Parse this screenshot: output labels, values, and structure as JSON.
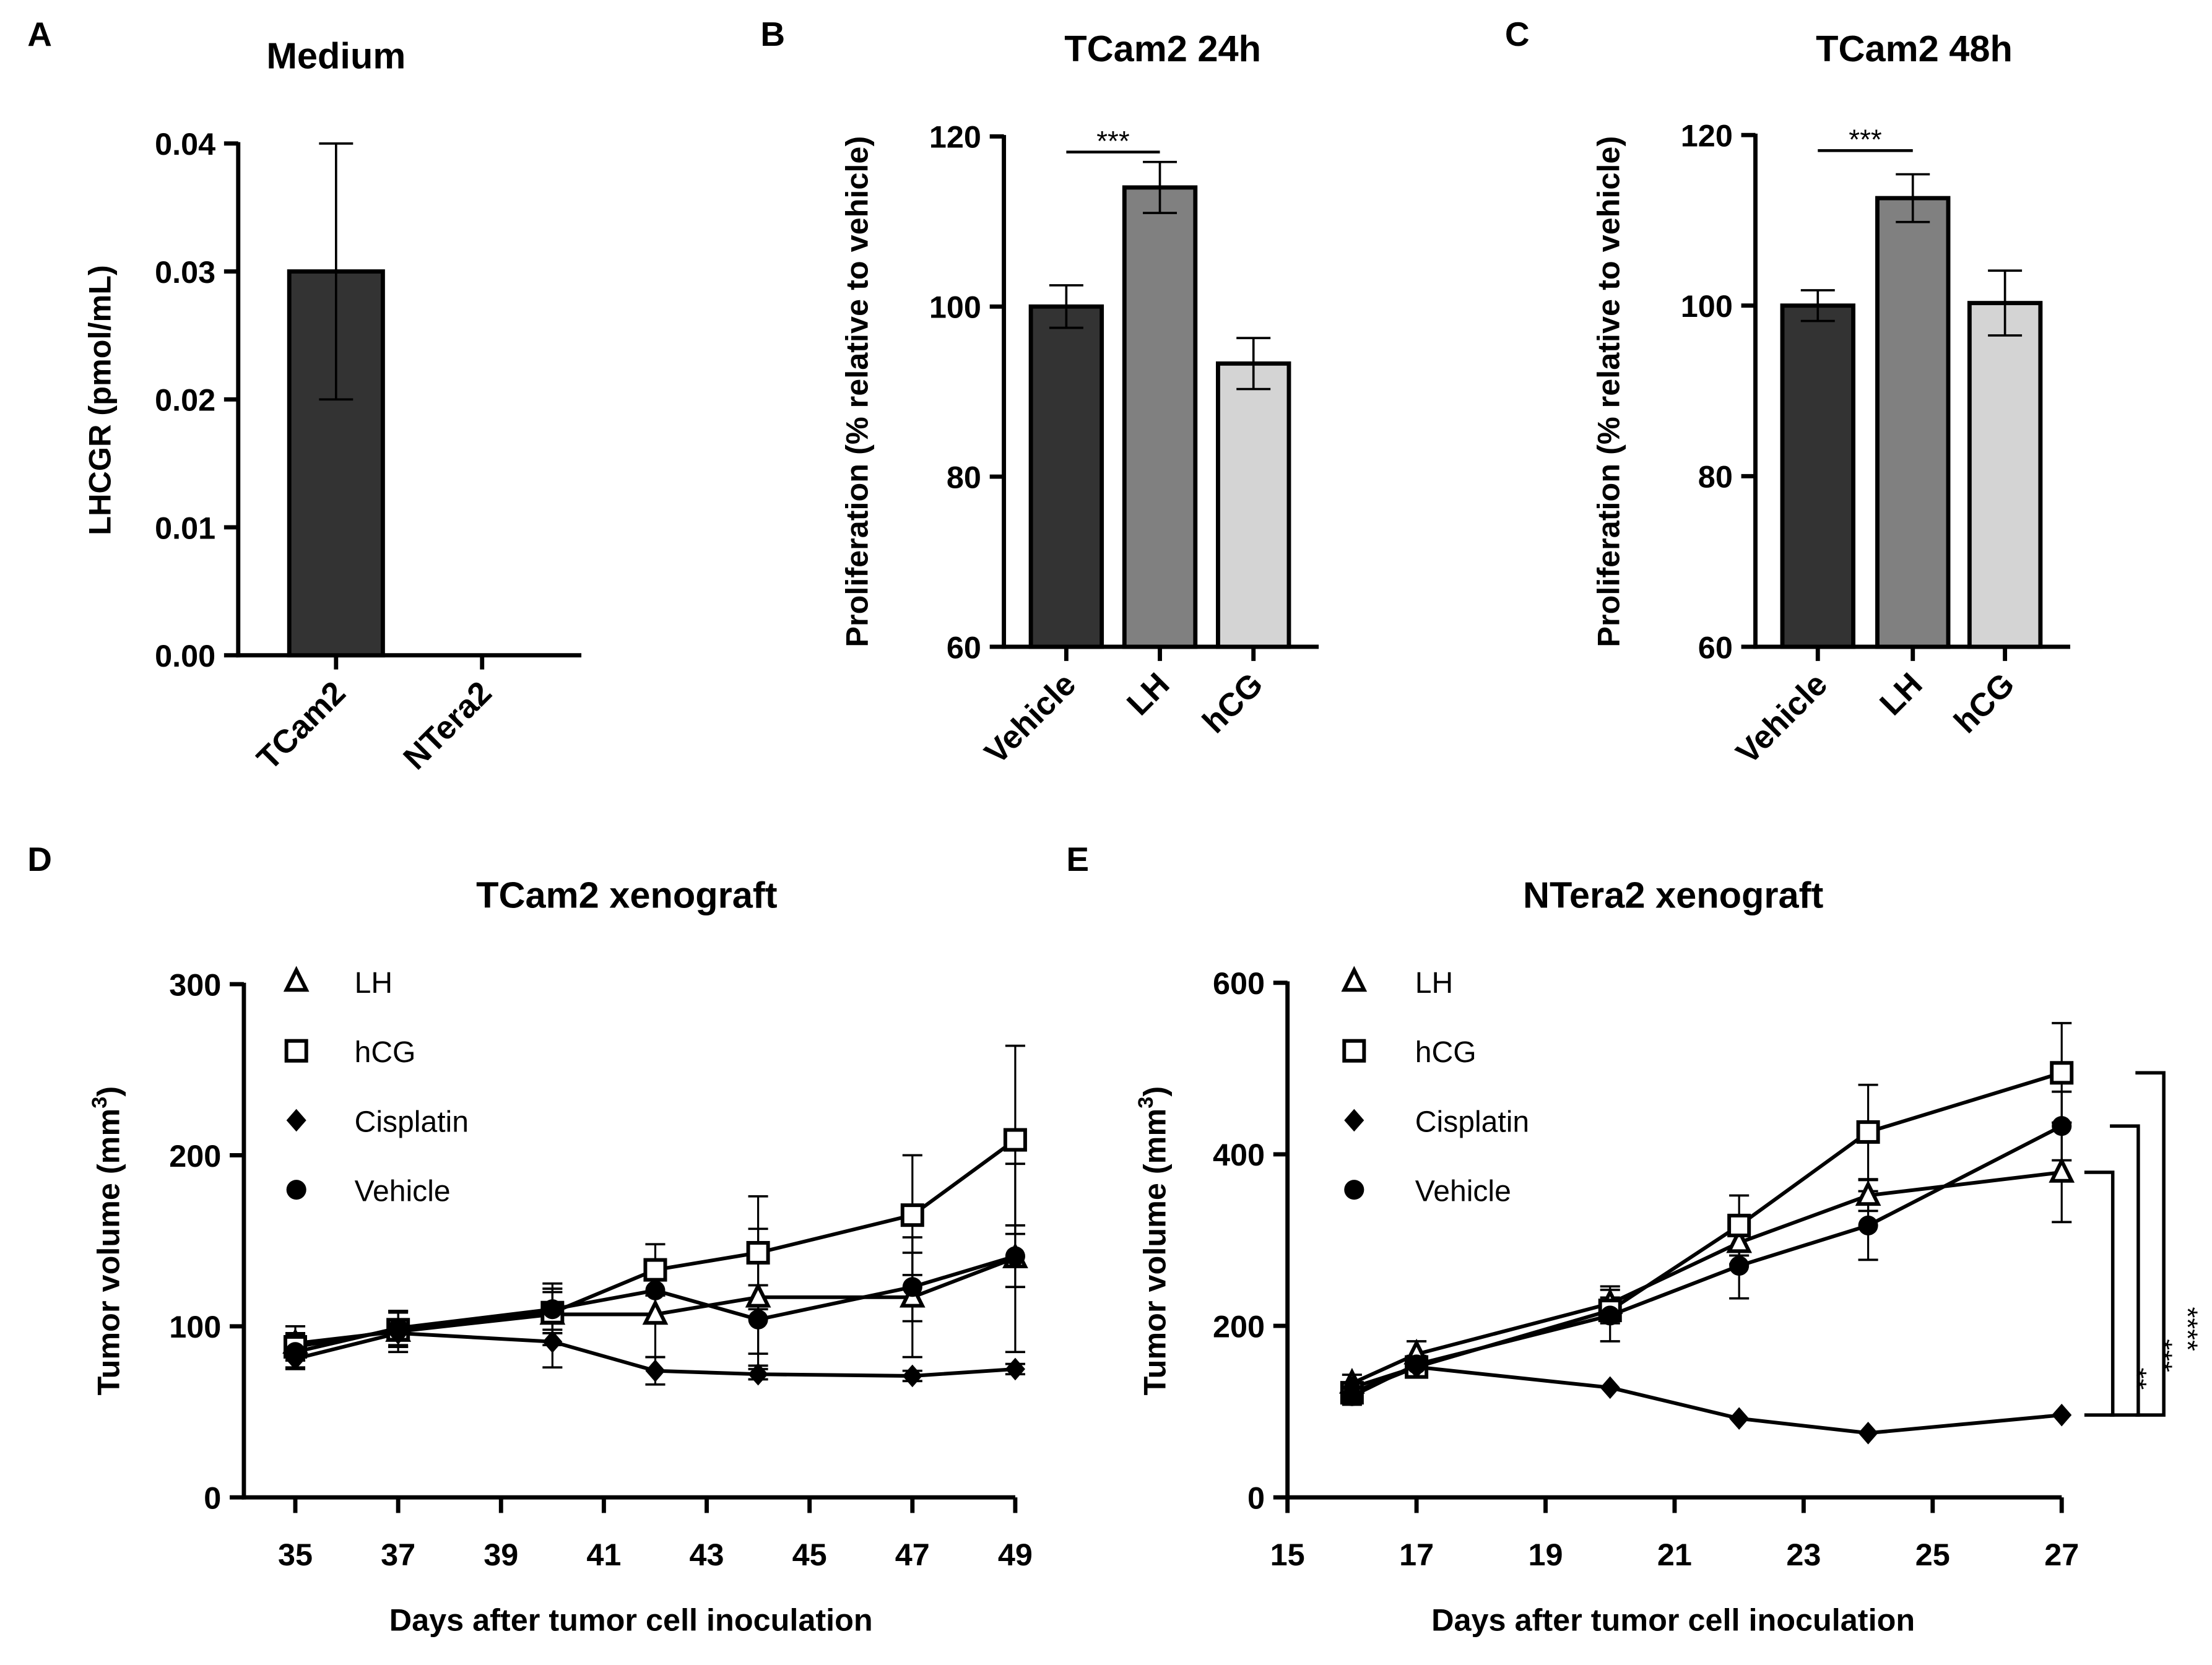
{
  "chart_data": [
    {
      "panel": "A",
      "type": "bar",
      "title": "Medium",
      "ylabel": "LHCGR (pmol/mL)",
      "xlabel": "",
      "categories": [
        "TCam2",
        "NTera2"
      ],
      "values": [
        0.03,
        0
      ],
      "errors": [
        0.01,
        0
      ],
      "colors": [
        "#333333",
        "#333333"
      ],
      "ylim": [
        0,
        0.04
      ],
      "yticks": [
        "0.00",
        "0.01",
        "0.02",
        "0.03",
        "0.04"
      ],
      "significance": []
    },
    {
      "panel": "B",
      "type": "bar",
      "title": "TCam2 24h",
      "ylabel": "Proliferation  (% relative to vehicle)",
      "xlabel": "",
      "categories": [
        "Vehicle",
        "LH",
        "hCG"
      ],
      "values": [
        100,
        114,
        93.3
      ],
      "errors": [
        2.5,
        3,
        3
      ],
      "colors": [
        "#333333",
        "#808080",
        "#d4d4d4"
      ],
      "ylim": [
        60,
        120
      ],
      "yticks": [
        "60",
        "80",
        "100",
        "120"
      ],
      "significance": [
        {
          "from": "Vehicle",
          "to": "LH",
          "label": "***"
        }
      ]
    },
    {
      "panel": "C",
      "type": "bar",
      "title": "TCam2 48h",
      "ylabel": "Proliferation  (% relative to vehicle)",
      "xlabel": "",
      "categories": [
        "Vehicle",
        "LH",
        "hCG"
      ],
      "values": [
        100,
        112.6,
        100.3
      ],
      "errors": [
        1.8,
        2.8,
        3.8
      ],
      "colors": [
        "#333333",
        "#808080",
        "#d4d4d4"
      ],
      "ylim": [
        60,
        120
      ],
      "yticks": [
        "60",
        "80",
        "100",
        "120"
      ],
      "significance": [
        {
          "from": "Vehicle",
          "to": "LH",
          "label": "***"
        }
      ]
    },
    {
      "panel": "D",
      "type": "line",
      "title": "TCam2  xenograft",
      "ylabel": "Tumor volume  (mm",
      "ylabel_sup": "3",
      "ylabel_end": ")",
      "xlabel": "Days after tumor cell inoculation",
      "xlim": [
        34,
        49
      ],
      "ylim": [
        0,
        300
      ],
      "xticks": [
        "35",
        "37",
        "39",
        "41",
        "43",
        "45",
        "47",
        "49"
      ],
      "yticks": [
        "0",
        "100",
        "200",
        "300"
      ],
      "x": [
        35,
        37,
        40,
        42,
        44,
        47,
        49
      ],
      "series": [
        {
          "name": "LH",
          "marker": "triangle-open",
          "values": [
            90,
            97,
            107,
            107,
            117,
            117,
            140
          ],
          "errors": [
            10,
            12,
            18,
            25,
            40,
            35,
            55
          ]
        },
        {
          "name": "hCG",
          "marker": "square-open",
          "values": [
            88,
            98,
            108,
            133,
            143,
            165,
            209
          ],
          "errors": [
            8,
            10,
            12,
            15,
            33,
            35,
            55
          ]
        },
        {
          "name": "Cisplatin",
          "marker": "diamond-filled",
          "values": [
            81,
            96,
            91,
            74,
            72,
            71,
            75
          ],
          "errors": [
            5,
            8,
            15,
            8,
            3,
            3,
            3
          ]
        },
        {
          "name": "Vehicle",
          "marker": "circle-filled",
          "values": [
            85,
            99,
            110,
            121,
            104,
            123,
            141
          ],
          "errors": [
            10,
            10,
            12,
            18,
            20,
            20,
            18
          ]
        }
      ],
      "legend": "top-left",
      "significance": []
    },
    {
      "panel": "E",
      "type": "line",
      "title": "NTera2  xenograft",
      "ylabel": "Tumor volume  (mm",
      "ylabel_sup": "3",
      "ylabel_end": ")",
      "xlabel": "Days after tumor cell inoculation",
      "xlim": [
        15,
        27
      ],
      "ylim": [
        0,
        600
      ],
      "xticks": [
        "15",
        "17",
        "19",
        "21",
        "23",
        "25",
        "27"
      ],
      "yticks": [
        "0",
        "200",
        "400",
        "600"
      ],
      "x": [
        16,
        17,
        20,
        22,
        24,
        27
      ],
      "series": [
        {
          "name": "LH",
          "marker": "triangle-open",
          "values": [
            133,
            167,
            226,
            297,
            352,
            379
          ],
          "errors": [
            10,
            15,
            20,
            25,
            18,
            58
          ]
        },
        {
          "name": "hCG",
          "marker": "square-open",
          "values": [
            122,
            152,
            218,
            317,
            426,
            495
          ],
          "errors": [
            12,
            10,
            15,
            35,
            55,
            58
          ]
        },
        {
          "name": "Cisplatin",
          "marker": "diamond-filled",
          "values": [
            128,
            152,
            128,
            92,
            75,
            96
          ],
          "errors": [
            0,
            0,
            0,
            0,
            0,
            0
          ]
        },
        {
          "name": "Vehicle",
          "marker": "circle-filled",
          "values": [
            118,
            155,
            212,
            270,
            317,
            433
          ],
          "errors": [
            10,
            10,
            30,
            38,
            40,
            40
          ]
        }
      ],
      "legend": "top-left",
      "significance": [
        {
          "from": "LH",
          "to": "Cisplatin",
          "label": "**"
        },
        {
          "from": "Vehicle",
          "to": "Cisplatin",
          "label": "***"
        },
        {
          "from": "hCG",
          "to": "Cisplatin",
          "label": "****"
        }
      ]
    }
  ]
}
